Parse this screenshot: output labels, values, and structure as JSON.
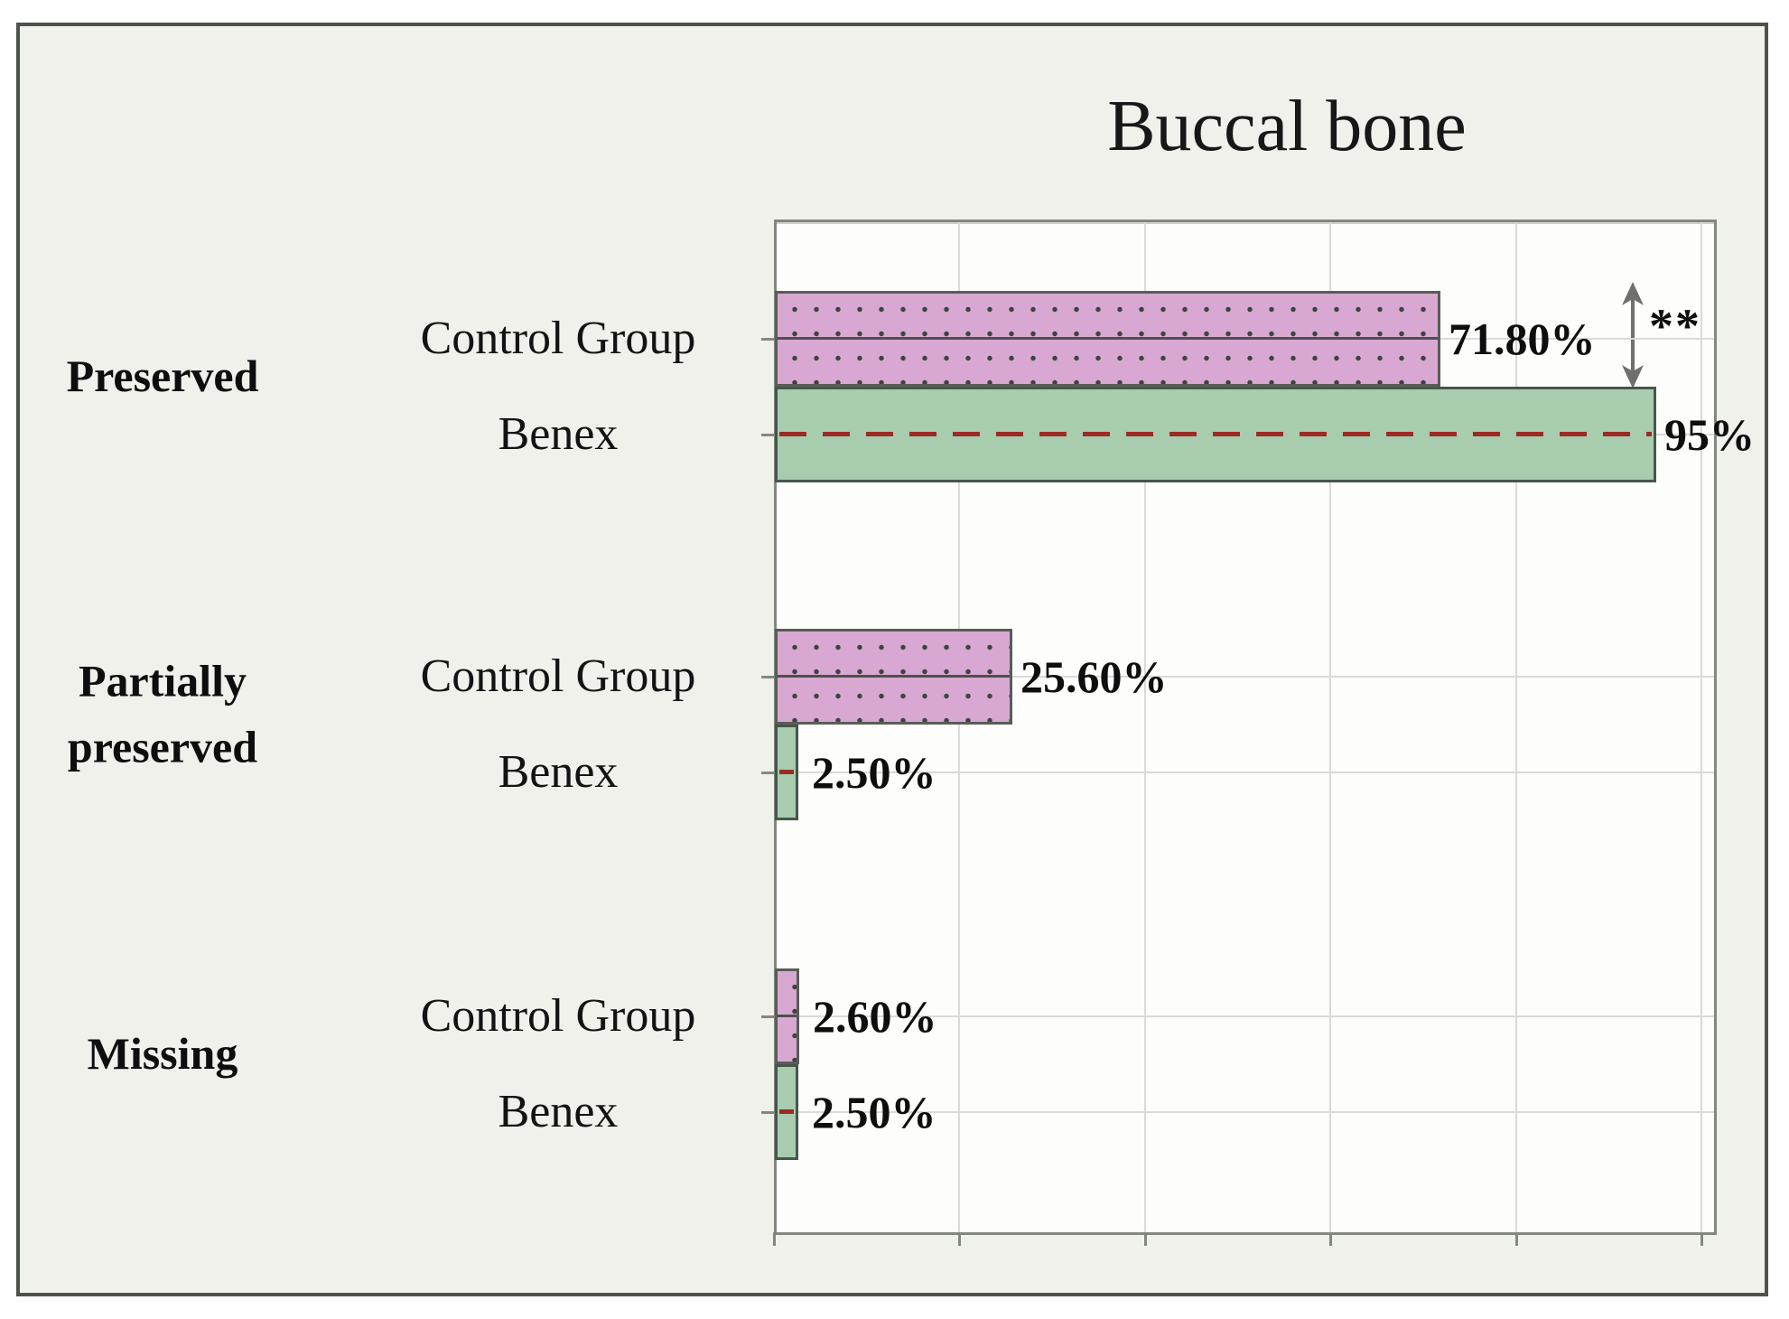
{
  "figure": {
    "title": "Buccal bone"
  },
  "colors": {
    "figure_background": "#eff1ea",
    "figure_border": "#4d524c",
    "plot_background": "#fdfdfc",
    "plot_frame": "#82887f",
    "gridline": "#d8dbd6",
    "control_fill": "#d8a8d3",
    "control_border": "#585d56",
    "control_dot": "#3c443e",
    "benex_fill": "#a7cdae",
    "benex_border": "#47564a",
    "benex_dash_line": "#9c2a25",
    "arrow": "#6f6f6f",
    "text": "#141414"
  },
  "chart_data": {
    "type": "bar",
    "orientation": "horizontal",
    "title": "Buccal bone",
    "categories": [
      "Preserved",
      "Partially preserved",
      "Missing"
    ],
    "series": [
      {
        "name": "Control Group",
        "fill": "#d8a8d3",
        "pattern": "dotted",
        "values": [
          71.8,
          25.6,
          2.6
        ],
        "value_labels": [
          "71.80%",
          "25.60%",
          "2.60%"
        ]
      },
      {
        "name": "Benex",
        "fill": "#a7cdae",
        "pattern": "dashed-red-centerline",
        "values": [
          95,
          2.5,
          2.5
        ],
        "value_labels": [
          "95%",
          "2.50%",
          "2.50%"
        ]
      }
    ],
    "xlim": [
      0,
      100
    ],
    "gridline_step": 20,
    "grid": true,
    "legend_position": "none",
    "annotations": [
      {
        "category": "Preserved",
        "text": "**",
        "symbol": "double-headed-arrow"
      }
    ]
  }
}
